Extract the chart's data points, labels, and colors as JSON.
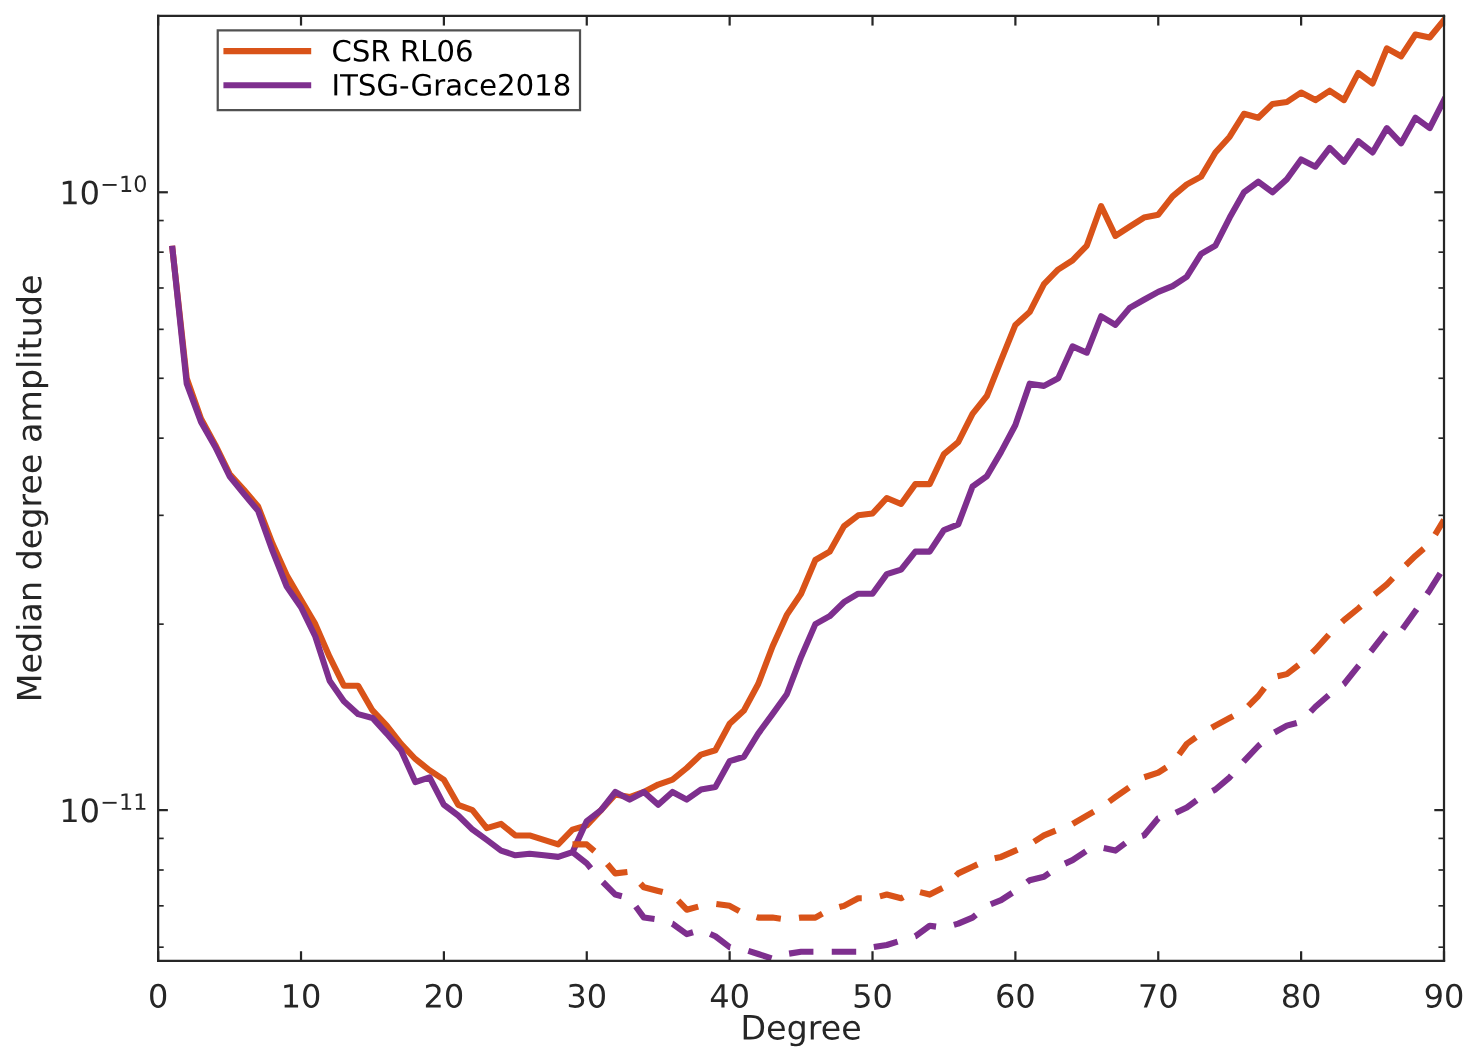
{
  "chart_data": {
    "type": "line",
    "xlabel": "Degree",
    "ylabel": "Median degree amplitude",
    "xlim": [
      0,
      90
    ],
    "xticks": [
      0,
      10,
      20,
      30,
      40,
      50,
      60,
      70,
      80,
      90
    ],
    "ylim": [
      5.7e-12,
      1.93e-10
    ],
    "yticks": [
      {
        "value": 1e-11,
        "label": "10$^{−11}$"
      },
      {
        "value": 1e-10,
        "label": "10$^{−10}$"
      }
    ],
    "log": "y",
    "grid": false,
    "legend": "top left",
    "series": [
      {
        "name": "CSR RL06",
        "color": "#d95319",
        "line_style": "solid",
        "x": [
          1,
          2,
          3,
          4,
          5,
          6,
          7,
          8,
          9,
          10,
          11,
          12,
          13,
          14,
          15,
          16,
          17,
          18,
          19,
          20,
          21,
          22,
          23,
          24,
          25,
          26,
          27,
          28,
          29,
          30,
          31,
          32,
          33,
          34,
          35,
          36,
          37,
          38,
          39,
          40,
          41,
          42,
          43,
          44,
          45,
          46,
          47,
          48,
          49,
          50,
          51,
          52,
          53,
          54,
          55,
          56,
          57,
          58,
          59,
          60,
          61,
          62,
          63,
          64,
          65,
          66,
          67,
          68,
          69,
          70,
          71,
          72,
          73,
          74,
          75,
          76,
          77,
          78,
          79,
          80,
          81,
          82,
          83,
          84,
          85,
          86,
          87,
          88,
          89,
          90
        ],
        "values": [
          8.1e-11,
          5e-11,
          4.3e-11,
          3.9e-11,
          3.5e-11,
          3.3e-11,
          3.1e-11,
          2.7e-11,
          2.4e-11,
          2.19e-11,
          2e-11,
          1.77e-11,
          1.59e-11,
          1.59e-11,
          1.45e-11,
          1.37e-11,
          1.28e-11,
          1.21e-11,
          1.16e-11,
          1.12e-11,
          1.02e-11,
          1e-11,
          9.35e-12,
          9.5e-12,
          9.1e-12,
          9.1e-12,
          8.95e-12,
          8.8e-12,
          9.3e-12,
          9.45e-12,
          1e-11,
          1.06e-11,
          1.05e-11,
          1.07e-11,
          1.1e-11,
          1.12e-11,
          1.17e-11,
          1.23e-11,
          1.25e-11,
          1.38e-11,
          1.45e-11,
          1.6e-11,
          1.84e-11,
          2.07e-11,
          2.24e-11,
          2.54e-11,
          2.62e-11,
          2.88e-11,
          3e-11,
          3.02e-11,
          3.2e-11,
          3.13e-11,
          3.37e-11,
          3.37e-11,
          3.77e-11,
          3.94e-11,
          4.38e-11,
          4.68e-11,
          5.35e-11,
          6.1e-11,
          6.4e-11,
          7.1e-11,
          7.5e-11,
          7.76e-11,
          8.2e-11,
          9.5e-11,
          8.5e-11,
          8.8e-11,
          9.1e-11,
          9.2e-11,
          9.85e-11,
          1.03e-10,
          1.06e-10,
          1.16e-10,
          1.23e-10,
          1.34e-10,
          1.32e-10,
          1.39e-10,
          1.4e-10,
          1.45e-10,
          1.41e-10,
          1.46e-10,
          1.41e-10,
          1.56e-10,
          1.5e-10,
          1.71e-10,
          1.66e-10,
          1.8e-10,
          1.78e-10,
          1.9e-10
        ]
      },
      {
        "name": "ITSG-Grace2018",
        "color": "#7e2f8e",
        "line_style": "solid",
        "x": [
          1,
          2,
          3,
          4,
          5,
          6,
          7,
          8,
          9,
          10,
          11,
          12,
          13,
          14,
          15,
          16,
          17,
          18,
          19,
          20,
          21,
          22,
          23,
          24,
          25,
          26,
          27,
          28,
          29,
          30,
          31,
          32,
          33,
          34,
          35,
          36,
          37,
          38,
          39,
          40,
          41,
          42,
          43,
          44,
          45,
          46,
          47,
          48,
          49,
          50,
          51,
          52,
          53,
          54,
          55,
          56,
          57,
          58,
          59,
          60,
          61,
          62,
          63,
          64,
          65,
          66,
          67,
          68,
          69,
          70,
          71,
          72,
          73,
          74,
          75,
          76,
          77,
          78,
          79,
          80,
          81,
          82,
          83,
          84,
          85,
          86,
          87,
          88,
          89,
          90
        ],
        "values": [
          8.1e-11,
          4.9e-11,
          4.25e-11,
          3.87e-11,
          3.47e-11,
          3.25e-11,
          3.05e-11,
          2.63e-11,
          2.3e-11,
          2.13e-11,
          1.91e-11,
          1.62e-11,
          1.5e-11,
          1.43e-11,
          1.41e-11,
          1.33e-11,
          1.25e-11,
          1.11e-11,
          1.13e-11,
          1.02e-11,
          9.8e-12,
          9.3e-12,
          8.95e-12,
          8.6e-12,
          8.45e-12,
          8.5e-12,
          8.45e-12,
          8.4e-12,
          8.55e-12,
          9.6e-12,
          1e-11,
          1.07e-11,
          1.04e-11,
          1.07e-11,
          1.02e-11,
          1.07e-11,
          1.04e-11,
          1.08e-11,
          1.09e-11,
          1.2e-11,
          1.22e-11,
          1.33e-11,
          1.43e-11,
          1.54e-11,
          1.77e-11,
          2e-11,
          2.06e-11,
          2.17e-11,
          2.24e-11,
          2.24e-11,
          2.41e-11,
          2.45e-11,
          2.62e-11,
          2.62e-11,
          2.84e-11,
          2.9e-11,
          3.34e-11,
          3.47e-11,
          3.8e-11,
          4.2e-11,
          4.9e-11,
          4.86e-11,
          5e-11,
          5.63e-11,
          5.5e-11,
          6.3e-11,
          6.1e-11,
          6.5e-11,
          6.7e-11,
          6.9e-11,
          7.05e-11,
          7.3e-11,
          7.95e-11,
          8.2e-11,
          9.1e-11,
          1e-10,
          1.04e-10,
          1e-10,
          1.05e-10,
          1.13e-10,
          1.1e-10,
          1.18e-10,
          1.12e-10,
          1.21e-10,
          1.16e-10,
          1.27e-10,
          1.2e-10,
          1.32e-10,
          1.27e-10,
          1.41e-10
        ]
      },
      {
        "color": "#d95319",
        "line_style": "dashed",
        "x": [
          29,
          30,
          31,
          32,
          33,
          34,
          35,
          36,
          37,
          38,
          39,
          40,
          41,
          42,
          43,
          44,
          45,
          46,
          47,
          48,
          49,
          50,
          51,
          52,
          53,
          54,
          55,
          56,
          57,
          58,
          59,
          60,
          61,
          62,
          63,
          64,
          65,
          66,
          67,
          68,
          69,
          70,
          71,
          72,
          73,
          74,
          75,
          76,
          77,
          78,
          79,
          80,
          81,
          82,
          83,
          84,
          85,
          86,
          87,
          88,
          89,
          90
        ],
        "values": [
          8.8e-12,
          8.8e-12,
          8.4e-12,
          7.9e-12,
          7.95e-12,
          7.5e-12,
          7.4e-12,
          7.3e-12,
          6.9e-12,
          7e-12,
          7.05e-12,
          7e-12,
          6.8e-12,
          6.7e-12,
          6.7e-12,
          6.65e-12,
          6.7e-12,
          6.7e-12,
          6.9e-12,
          7e-12,
          7.2e-12,
          7.2e-12,
          7.3e-12,
          7.2e-12,
          7.4e-12,
          7.3e-12,
          7.5e-12,
          7.9e-12,
          8.1e-12,
          8.3e-12,
          8.4e-12,
          8.6e-12,
          8.8e-12,
          9.1e-12,
          9.3e-12,
          9.5e-12,
          9.8e-12,
          1.01e-11,
          1.05e-11,
          1.09e-11,
          1.13e-11,
          1.15e-11,
          1.19e-11,
          1.28e-11,
          1.33e-11,
          1.37e-11,
          1.41e-11,
          1.45e-11,
          1.53e-11,
          1.64e-11,
          1.66e-11,
          1.73e-11,
          1.82e-11,
          1.93e-11,
          2.03e-11,
          2.12e-11,
          2.22e-11,
          2.32e-11,
          2.45e-11,
          2.58e-11,
          2.7e-11,
          2.95e-11
        ]
      },
      {
        "color": "#7e2f8e",
        "line_style": "dashed",
        "x": [
          29,
          30,
          31,
          32,
          33,
          34,
          35,
          36,
          37,
          38,
          39,
          40,
          41,
          42,
          43,
          44,
          45,
          46,
          47,
          48,
          49,
          50,
          51,
          52,
          53,
          54,
          55,
          56,
          57,
          58,
          59,
          60,
          61,
          62,
          63,
          64,
          65,
          66,
          67,
          68,
          69,
          70,
          71,
          72,
          73,
          74,
          75,
          76,
          77,
          78,
          79,
          80,
          81,
          82,
          83,
          84,
          85,
          86,
          87,
          88,
          89,
          90
        ],
        "values": [
          8.55e-12,
          8.2e-12,
          7.7e-12,
          7.3e-12,
          7.2e-12,
          6.7e-12,
          6.65e-12,
          6.55e-12,
          6.3e-12,
          6.4e-12,
          6.25e-12,
          6e-12,
          5.95e-12,
          5.85e-12,
          5.75e-12,
          5.85e-12,
          5.9e-12,
          5.9e-12,
          5.9e-12,
          5.9e-12,
          5.9e-12,
          6e-12,
          6.05e-12,
          6.15e-12,
          6.25e-12,
          6.5e-12,
          6.45e-12,
          6.55e-12,
          6.7e-12,
          7e-12,
          7.15e-12,
          7.4e-12,
          7.7e-12,
          7.8e-12,
          8.1e-12,
          8.3e-12,
          8.6e-12,
          8.7e-12,
          8.6e-12,
          8.95e-12,
          9.1e-12,
          9.7e-12,
          9.85e-12,
          1.01e-11,
          1.05e-11,
          1.08e-11,
          1.13e-11,
          1.2e-11,
          1.27e-11,
          1.33e-11,
          1.37e-11,
          1.39e-11,
          1.47e-11,
          1.54e-11,
          1.6e-11,
          1.71e-11,
          1.82e-11,
          1.95e-11,
          1.95e-11,
          2.1e-11,
          2.27e-11,
          2.47e-11
        ]
      }
    ]
  }
}
